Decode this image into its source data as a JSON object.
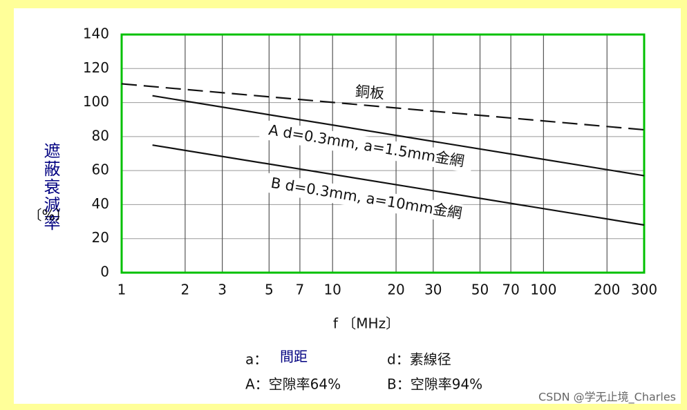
{
  "chart_data": {
    "type": "line",
    "xlabel": "f 〔MHz〕",
    "ylabel": "遮蔽衰減率",
    "ylabel_unit": "〔%〕",
    "x_scale": "log",
    "xlim": [
      1,
      300
    ],
    "xticks": [
      1,
      2,
      3,
      5,
      7,
      10,
      20,
      30,
      50,
      70,
      100,
      200,
      300
    ],
    "ylim": [
      0,
      140
    ],
    "yticks": [
      0,
      20,
      40,
      60,
      80,
      100,
      120,
      140
    ],
    "grid": true,
    "series": [
      {
        "name": "銅板",
        "color": "#111111",
        "line_style": "dashed",
        "x": [
          1,
          300
        ],
        "values": [
          111,
          84
        ]
      },
      {
        "name": "A  d=0.3mm, a=1.5mm金網",
        "color": "#111111",
        "line_style": "solid",
        "x": [
          1.4,
          300
        ],
        "values": [
          104,
          57
        ]
      },
      {
        "name": "B  d=0.3mm, a=10mm金網",
        "color": "#111111",
        "line_style": "solid",
        "x": [
          1.4,
          300
        ],
        "values": [
          75,
          28
        ]
      }
    ]
  },
  "notes": [
    "a：",
    "間距",
    "d：素線径",
    "A：空隙率64%",
    "B：空隙率94%"
  ],
  "watermark": "CSDN @学无止境_Charles"
}
